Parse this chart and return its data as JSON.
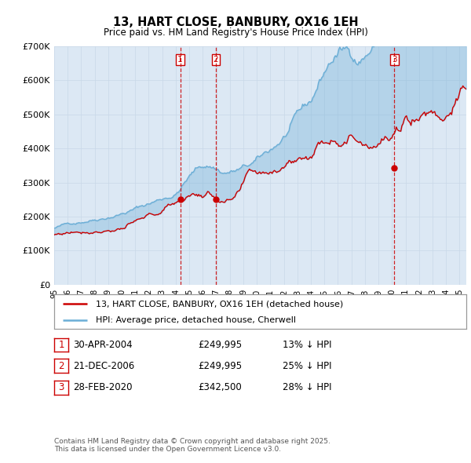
{
  "title": "13, HART CLOSE, BANBURY, OX16 1EH",
  "subtitle": "Price paid vs. HM Land Registry's House Price Index (HPI)",
  "ylim": [
    0,
    700000
  ],
  "yticks": [
    0,
    100000,
    200000,
    300000,
    400000,
    500000,
    600000,
    700000
  ],
  "ytick_labels": [
    "£0",
    "£100K",
    "£200K",
    "£300K",
    "£400K",
    "£500K",
    "£600K",
    "£700K"
  ],
  "hpi_color": "#6baed6",
  "price_color": "#cc0000",
  "vline_color": "#cc0000",
  "grid_color": "#c8d8e8",
  "background_color": "#dce8f4",
  "sale_dates": [
    2004.33,
    2006.97,
    2020.17
  ],
  "sale_prices": [
    249995,
    249995,
    342500
  ],
  "sale_labels": [
    "1",
    "2",
    "3"
  ],
  "legend_price_label": "13, HART CLOSE, BANBURY, OX16 1EH (detached house)",
  "legend_hpi_label": "HPI: Average price, detached house, Cherwell",
  "table_rows": [
    [
      "1",
      "30-APR-2004",
      "£249,995",
      "13% ↓ HPI"
    ],
    [
      "2",
      "21-DEC-2006",
      "£249,995",
      "25% ↓ HPI"
    ],
    [
      "3",
      "28-FEB-2020",
      "£342,500",
      "28% ↓ HPI"
    ]
  ],
  "footnote": "Contains HM Land Registry data © Crown copyright and database right 2025.\nThis data is licensed under the Open Government Licence v3.0.",
  "xmin": 1995,
  "xmax": 2025.5,
  "xtick_years": [
    1995,
    1996,
    1997,
    1998,
    1999,
    2000,
    2001,
    2002,
    2003,
    2004,
    2005,
    2006,
    2007,
    2008,
    2009,
    2010,
    2011,
    2012,
    2013,
    2014,
    2015,
    2016,
    2017,
    2018,
    2019,
    2020,
    2021,
    2022,
    2023,
    2024,
    2025
  ]
}
